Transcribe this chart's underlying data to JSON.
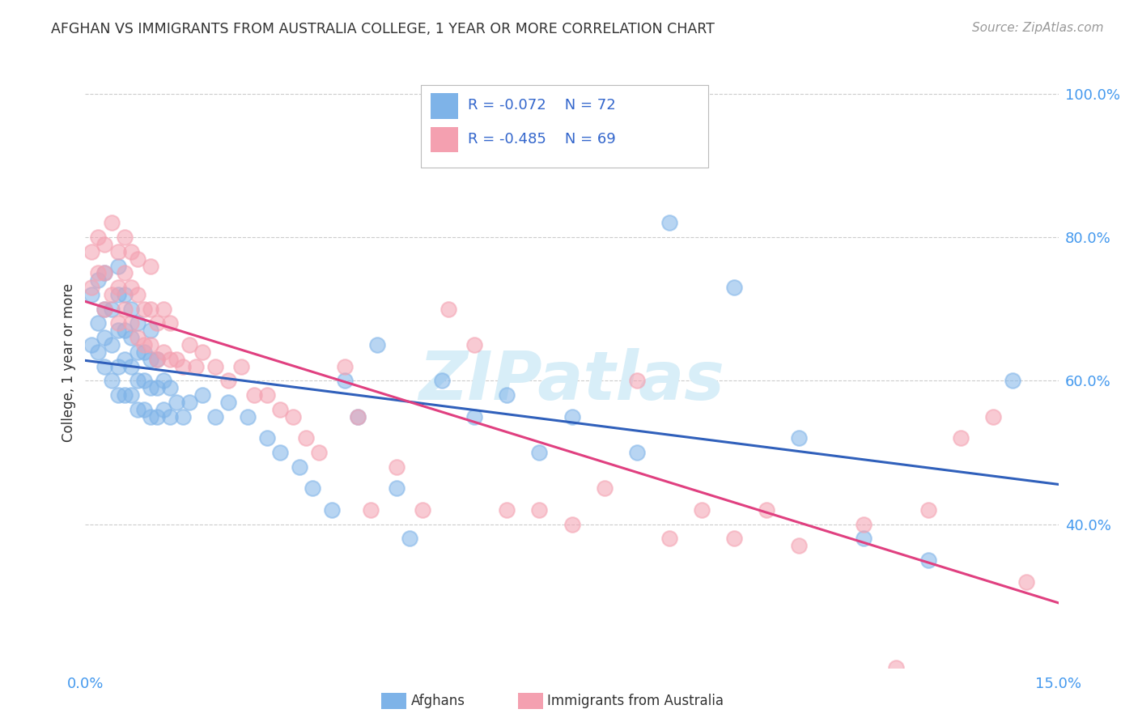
{
  "title": "AFGHAN VS IMMIGRANTS FROM AUSTRALIA COLLEGE, 1 YEAR OR MORE CORRELATION CHART",
  "source": "Source: ZipAtlas.com",
  "ylabel": "College, 1 year or more",
  "blue_R": -0.072,
  "blue_N": 72,
  "pink_R": -0.485,
  "pink_N": 69,
  "blue_color": "#7EB3E8",
  "pink_color": "#F4A0B0",
  "blue_line_color": "#3060BB",
  "pink_line_color": "#E04080",
  "legend_text_color": "#3366CC",
  "title_color": "#333333",
  "source_color": "#999999",
  "axis_color": "#4499EE",
  "grid_color": "#CCCCCC",
  "watermark_color": "#D8EEF8",
  "background_color": "#FFFFFF",
  "xlim": [
    0.0,
    0.15
  ],
  "ylim": [
    0.2,
    1.05
  ],
  "blue_scatter_x": [
    0.001,
    0.001,
    0.002,
    0.002,
    0.002,
    0.003,
    0.003,
    0.003,
    0.003,
    0.004,
    0.004,
    0.004,
    0.005,
    0.005,
    0.005,
    0.005,
    0.005,
    0.006,
    0.006,
    0.006,
    0.006,
    0.007,
    0.007,
    0.007,
    0.007,
    0.008,
    0.008,
    0.008,
    0.008,
    0.009,
    0.009,
    0.009,
    0.01,
    0.01,
    0.01,
    0.01,
    0.011,
    0.011,
    0.011,
    0.012,
    0.012,
    0.013,
    0.013,
    0.014,
    0.015,
    0.016,
    0.018,
    0.02,
    0.022,
    0.025,
    0.028,
    0.03,
    0.033,
    0.035,
    0.038,
    0.04,
    0.042,
    0.045,
    0.048,
    0.05,
    0.055,
    0.06,
    0.065,
    0.07,
    0.075,
    0.085,
    0.09,
    0.1,
    0.11,
    0.12,
    0.13,
    0.143
  ],
  "blue_scatter_y": [
    0.65,
    0.72,
    0.64,
    0.68,
    0.74,
    0.62,
    0.66,
    0.7,
    0.75,
    0.6,
    0.65,
    0.7,
    0.58,
    0.62,
    0.67,
    0.72,
    0.76,
    0.58,
    0.63,
    0.67,
    0.72,
    0.58,
    0.62,
    0.66,
    0.7,
    0.56,
    0.6,
    0.64,
    0.68,
    0.56,
    0.6,
    0.64,
    0.55,
    0.59,
    0.63,
    0.67,
    0.55,
    0.59,
    0.63,
    0.56,
    0.6,
    0.55,
    0.59,
    0.57,
    0.55,
    0.57,
    0.58,
    0.55,
    0.57,
    0.55,
    0.52,
    0.5,
    0.48,
    0.45,
    0.42,
    0.6,
    0.55,
    0.65,
    0.45,
    0.38,
    0.6,
    0.55,
    0.58,
    0.5,
    0.55,
    0.5,
    0.82,
    0.73,
    0.52,
    0.38,
    0.35,
    0.6
  ],
  "pink_scatter_x": [
    0.001,
    0.001,
    0.002,
    0.002,
    0.003,
    0.003,
    0.003,
    0.004,
    0.004,
    0.005,
    0.005,
    0.005,
    0.006,
    0.006,
    0.006,
    0.007,
    0.007,
    0.007,
    0.008,
    0.008,
    0.008,
    0.009,
    0.009,
    0.01,
    0.01,
    0.01,
    0.011,
    0.011,
    0.012,
    0.012,
    0.013,
    0.013,
    0.014,
    0.015,
    0.016,
    0.017,
    0.018,
    0.02,
    0.022,
    0.024,
    0.026,
    0.028,
    0.03,
    0.032,
    0.034,
    0.036,
    0.04,
    0.042,
    0.044,
    0.048,
    0.052,
    0.056,
    0.06,
    0.065,
    0.07,
    0.075,
    0.08,
    0.085,
    0.09,
    0.095,
    0.1,
    0.105,
    0.11,
    0.12,
    0.125,
    0.13,
    0.135,
    0.14,
    0.145
  ],
  "pink_scatter_y": [
    0.73,
    0.78,
    0.75,
    0.8,
    0.7,
    0.75,
    0.79,
    0.72,
    0.82,
    0.68,
    0.73,
    0.78,
    0.7,
    0.75,
    0.8,
    0.68,
    0.73,
    0.78,
    0.66,
    0.72,
    0.77,
    0.65,
    0.7,
    0.65,
    0.7,
    0.76,
    0.63,
    0.68,
    0.64,
    0.7,
    0.63,
    0.68,
    0.63,
    0.62,
    0.65,
    0.62,
    0.64,
    0.62,
    0.6,
    0.62,
    0.58,
    0.58,
    0.56,
    0.55,
    0.52,
    0.5,
    0.62,
    0.55,
    0.42,
    0.48,
    0.42,
    0.7,
    0.65,
    0.42,
    0.42,
    0.4,
    0.45,
    0.6,
    0.38,
    0.42,
    0.38,
    0.42,
    0.37,
    0.4,
    0.2,
    0.42,
    0.52,
    0.55,
    0.32
  ]
}
